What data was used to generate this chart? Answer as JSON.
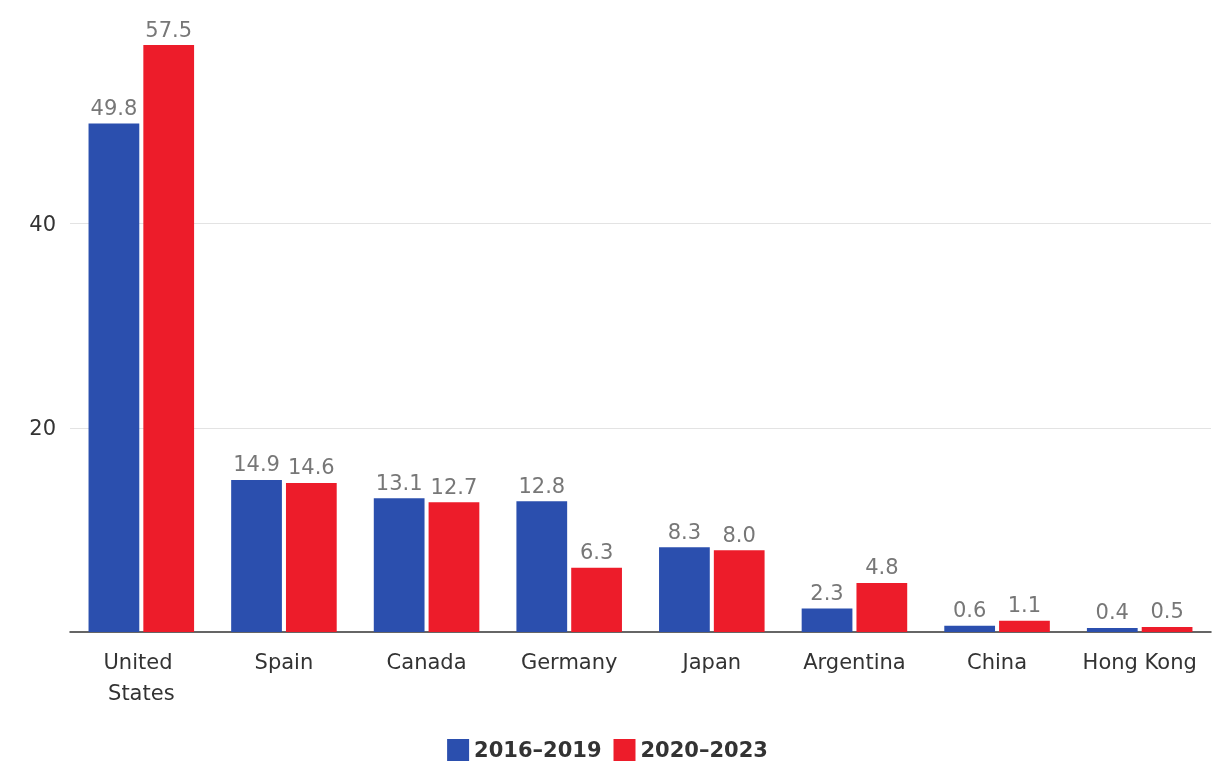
{
  "chart_data": {
    "type": "bar",
    "categories": [
      "United States",
      "Spain",
      "Canada",
      "Germany",
      "Japan",
      "Argentina",
      "China",
      "Hong Kong"
    ],
    "series": [
      {
        "name": "2016–2019",
        "color": "#2b4fae",
        "values": [
          49.8,
          14.9,
          13.1,
          12.8,
          8.3,
          2.3,
          0.6,
          0.4
        ],
        "value_labels": [
          "49.8",
          "14.9",
          "13.1",
          "12.8",
          "8.3",
          "2.3",
          "0.6",
          "0.4"
        ]
      },
      {
        "name": "2020–2023",
        "color": "#ed1c2a",
        "values": [
          57.5,
          14.6,
          12.7,
          6.3,
          8.0,
          4.8,
          1.1,
          0.5
        ],
        "value_labels": [
          "57.5",
          "14.6",
          "12.7",
          "6.3",
          "8.0",
          "4.8",
          "1.1",
          "0.5"
        ]
      }
    ],
    "ylim": [
      0,
      57.5
    ],
    "yticks": [
      20,
      40
    ],
    "grid": "y",
    "legend": "bottom"
  }
}
